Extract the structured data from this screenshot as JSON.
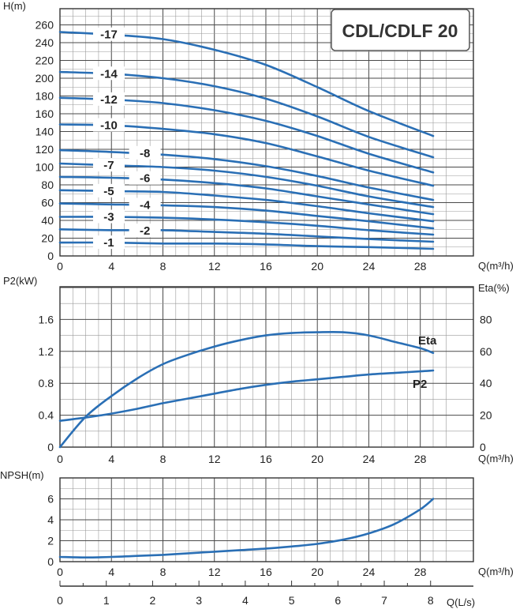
{
  "header": {
    "title": "CDL/CDLF 20"
  },
  "colors": {
    "curve": "#2a6fb5",
    "grid_major": "#4a4a4a",
    "grid_minor": "#9a9a9a",
    "text": "#222222"
  },
  "chart_data": [
    {
      "type": "line",
      "title": "",
      "xlabel": "Q(m³/h)",
      "ylabel": "H(m)",
      "xlim": [
        0,
        29
      ],
      "ylim": [
        0,
        270
      ],
      "x_ticks": [
        "0",
        "4",
        "8",
        "12",
        "16",
        "20",
        "24",
        "28"
      ],
      "y_ticks": [
        "0",
        "20",
        "40",
        "60",
        "80",
        "100",
        "120",
        "140",
        "160",
        "180",
        "200",
        "220",
        "240",
        "260"
      ],
      "x": [
        0,
        4,
        8,
        12,
        16,
        20,
        24,
        29
      ],
      "series": [
        {
          "name": "-17",
          "values": [
            252,
            249,
            244,
            232,
            215,
            190,
            163,
            135
          ]
        },
        {
          "name": "-14",
          "values": [
            207,
            205,
            200,
            191,
            177,
            157,
            134,
            111
          ]
        },
        {
          "name": "-12",
          "values": [
            178,
            176,
            172,
            164,
            152,
            135,
            115,
            94
          ]
        },
        {
          "name": "-10",
          "values": [
            148,
            147,
            143,
            137,
            127,
            112,
            96,
            79
          ]
        },
        {
          "name": "-8",
          "values": [
            119,
            117,
            114,
            109,
            101,
            90,
            77,
            63
          ]
        },
        {
          "name": "-7",
          "values": [
            104,
            102,
            100,
            96,
            89,
            79,
            67,
            55
          ]
        },
        {
          "name": "-6",
          "values": [
            89,
            88,
            86,
            82,
            76,
            67,
            58,
            47
          ]
        },
        {
          "name": "-5",
          "values": [
            74,
            73,
            72,
            68,
            63,
            56,
            48,
            39
          ]
        },
        {
          "name": "-4",
          "values": [
            59,
            58,
            57,
            55,
            51,
            45,
            39,
            31
          ]
        },
        {
          "name": "-3",
          "values": [
            44,
            44,
            43,
            41,
            38,
            34,
            29,
            24
          ]
        },
        {
          "name": "-2",
          "values": [
            30,
            29,
            29,
            27,
            25,
            22,
            19,
            16
          ]
        },
        {
          "name": "-1",
          "values": [
            15,
            15,
            14,
            14,
            13,
            11,
            10,
            8
          ]
        }
      ]
    },
    {
      "type": "line",
      "title": "",
      "xlabel": "Q(m³/h)",
      "ylabel": "P2(kW)",
      "ylabel_right": "Eta(%)",
      "xlim": [
        0,
        29
      ],
      "ylim": [
        0,
        2.0
      ],
      "ylim_right": [
        0,
        100
      ],
      "x_ticks": [
        "0",
        "4",
        "8",
        "12",
        "16",
        "20",
        "24",
        "28"
      ],
      "y_ticks": [
        "0",
        "0.4",
        "0.8",
        "1.2",
        "1.6"
      ],
      "y_ticks_right": [
        "0",
        "20",
        "40",
        "60",
        "80"
      ],
      "series": [
        {
          "name": "Eta",
          "axis": "right",
          "x": [
            0,
            2,
            4,
            6,
            8,
            10,
            12,
            14,
            16,
            18,
            20,
            22,
            24,
            26,
            28,
            29
          ],
          "values": [
            0,
            19,
            32,
            43,
            52,
            58,
            63,
            67,
            70,
            71.5,
            72,
            72,
            70,
            66,
            62,
            59
          ]
        },
        {
          "name": "P2",
          "axis": "left",
          "x": [
            0,
            2,
            4,
            6,
            8,
            10,
            12,
            14,
            16,
            18,
            20,
            22,
            24,
            26,
            28,
            29
          ],
          "values": [
            0.33,
            0.37,
            0.42,
            0.48,
            0.55,
            0.61,
            0.67,
            0.73,
            0.78,
            0.82,
            0.85,
            0.88,
            0.91,
            0.93,
            0.95,
            0.96
          ]
        }
      ]
    },
    {
      "type": "line",
      "title": "",
      "xlabel": "Q(m³/h)",
      "ylabel": "NPSH(m)",
      "xlim": [
        0,
        29
      ],
      "ylim": [
        0,
        7.5
      ],
      "x_ticks": [
        "0",
        "4",
        "8",
        "12",
        "16",
        "20",
        "24",
        "28"
      ],
      "y_ticks": [
        "0",
        "2",
        "4",
        "6"
      ],
      "x2label": "Q(L/s)",
      "x2_ticks": [
        "0",
        "1",
        "2",
        "3",
        "4",
        "5",
        "6",
        "7",
        "8"
      ],
      "series": [
        {
          "name": "NPSH",
          "x": [
            0,
            2,
            4,
            6,
            8,
            10,
            12,
            14,
            16,
            18,
            20,
            22,
            24,
            26,
            28,
            29
          ],
          "values": [
            0.45,
            0.4,
            0.45,
            0.55,
            0.65,
            0.8,
            0.95,
            1.1,
            1.25,
            1.45,
            1.7,
            2.1,
            2.7,
            3.6,
            5.0,
            6.0
          ]
        }
      ]
    }
  ]
}
